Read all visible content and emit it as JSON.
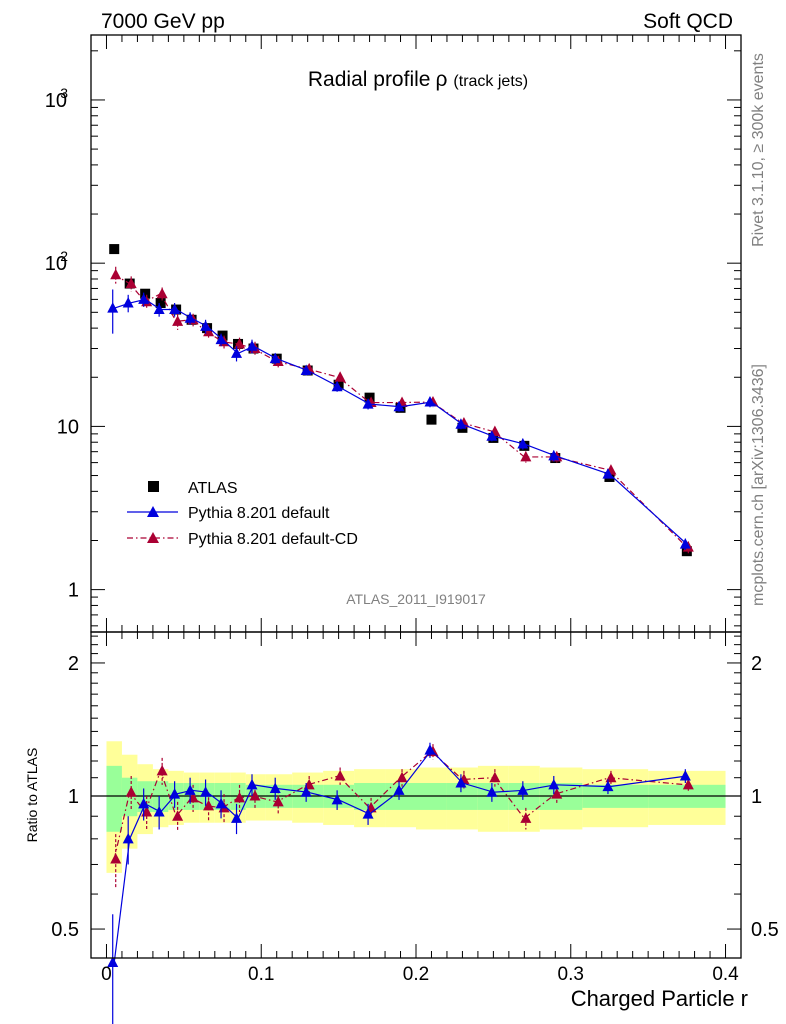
{
  "header": {
    "left": "7000 GeV pp",
    "right": "Soft QCD"
  },
  "chart_data": {
    "type": "line",
    "title": "Radial profile",
    "title_symbol": "ρ",
    "title_suffix": "(track jets)",
    "analysis_tag": "ATLAS_2011_I919017",
    "side_text_top": "Rivet 3.1.10, ≥ 300k events",
    "side_text_bottom": "mcplots.cern.ch [arXiv:1306.3436]",
    "xlabel": "Charged Particle r",
    "ylabel_ratio": "Ratio to ATLAS",
    "xlim": [
      -0.01,
      0.41
    ],
    "main_ylim": [
      0.55,
      2500
    ],
    "main_yscale": "log",
    "ratio_ylim": [
      0.43,
      2.35
    ],
    "ratio_yscale": "log",
    "x_ticks": [
      "0",
      "0.1",
      "0.2",
      "0.3",
      "0.4"
    ],
    "main_y_ticks": [
      "1",
      "10",
      "10",
      "3"
    ],
    "main_y_tick_values": [
      1,
      10,
      100,
      1000
    ],
    "ratio_y_ticks": [
      "0.5",
      "1",
      "2"
    ],
    "ratio_y_tick_values": [
      0.5,
      1,
      2
    ],
    "legend_placement": "lower-left",
    "x": [
      0.005,
      0.015,
      0.025,
      0.035,
      0.045,
      0.055,
      0.065,
      0.075,
      0.085,
      0.095,
      0.11,
      0.13,
      0.15,
      0.17,
      0.19,
      0.21,
      0.23,
      0.25,
      0.27,
      0.29,
      0.325,
      0.375
    ],
    "series": [
      {
        "name": "ATLAS",
        "color": "#000000",
        "marker": "square",
        "values": [
          122,
          75,
          65,
          57,
          52,
          45,
          40,
          36,
          32,
          30,
          26,
          22,
          18,
          15,
          13,
          11,
          9.8,
          8.5,
          7.6,
          6.4,
          4.9,
          1.72
        ]
      },
      {
        "name": "Pythia 8.201 default",
        "color": "#0000dd",
        "marker": "triangle",
        "line": "solid",
        "values": [
          53,
          57,
          60,
          52,
          52,
          46,
          41,
          34,
          28,
          31,
          26,
          22,
          17.5,
          13.7,
          13.2,
          14.1,
          10.3,
          8.7,
          7.8,
          6.6,
          5.1,
          1.9
        ],
        "errors": [
          16,
          7,
          6,
          5,
          5,
          4,
          4,
          3,
          3,
          3,
          2,
          1.5,
          1.2,
          1,
          0.9,
          1,
          0.7,
          0.6,
          0.6,
          0.5,
          0.3,
          0.15
        ],
        "ratio": [
          0.42,
          0.8,
          0.96,
          0.92,
          1.01,
          1.03,
          1.02,
          0.96,
          0.89,
          1.06,
          1.04,
          1.02,
          0.98,
          0.91,
          1.03,
          1.27,
          1.07,
          1.02,
          1.03,
          1.06,
          1.05,
          1.11
        ],
        "ratio_errors": [
          0.12,
          0.1,
          0.08,
          0.08,
          0.07,
          0.07,
          0.07,
          0.07,
          0.07,
          0.06,
          0.06,
          0.05,
          0.05,
          0.05,
          0.05,
          0.05,
          0.05,
          0.05,
          0.05,
          0.05,
          0.04,
          0.04
        ]
      },
      {
        "name": "Pythia 8.201 default-CD",
        "color": "#aa0033",
        "marker": "triangle",
        "line": "dash-dot",
        "values": [
          85,
          75,
          58,
          65,
          44,
          45,
          38,
          33,
          32,
          30,
          25,
          22.5,
          20,
          14,
          14,
          14.1,
          10.5,
          9.3,
          6.5,
          6.5,
          5.4,
          1.82
        ],
        "errors": [
          10,
          8,
          6,
          6,
          5,
          4,
          4,
          3,
          3,
          3,
          2,
          1.6,
          1.3,
          1,
          0.9,
          1,
          0.7,
          0.6,
          0.5,
          0.5,
          0.3,
          0.15
        ],
        "ratio": [
          0.72,
          1.02,
          0.92,
          1.14,
          0.9,
          0.99,
          0.95,
          0.94,
          0.99,
          1.0,
          0.97,
          1.06,
          1.11,
          0.94,
          1.1,
          1.26,
          1.09,
          1.1,
          0.89,
          1.01,
          1.1,
          1.06
        ],
        "ratio_errors": [
          0.1,
          0.09,
          0.08,
          0.08,
          0.07,
          0.07,
          0.07,
          0.07,
          0.07,
          0.06,
          0.06,
          0.05,
          0.05,
          0.05,
          0.05,
          0.05,
          0.05,
          0.05,
          0.05,
          0.05,
          0.04,
          0.04
        ]
      }
    ],
    "ratio_bands": {
      "inner_color": "#99ff99",
      "outer_color": "#ffff99",
      "inner": [
        0.17,
        0.1,
        0.08,
        0.08,
        0.07,
        0.07,
        0.07,
        0.07,
        0.07,
        0.06,
        0.06,
        0.06,
        0.06,
        0.07,
        0.07,
        0.07,
        0.07,
        0.07,
        0.07,
        0.07,
        0.06,
        0.06
      ],
      "outer": [
        0.33,
        0.24,
        0.18,
        0.15,
        0.14,
        0.13,
        0.13,
        0.13,
        0.13,
        0.12,
        0.12,
        0.13,
        0.14,
        0.15,
        0.15,
        0.16,
        0.16,
        0.17,
        0.17,
        0.16,
        0.15,
        0.14
      ]
    }
  }
}
